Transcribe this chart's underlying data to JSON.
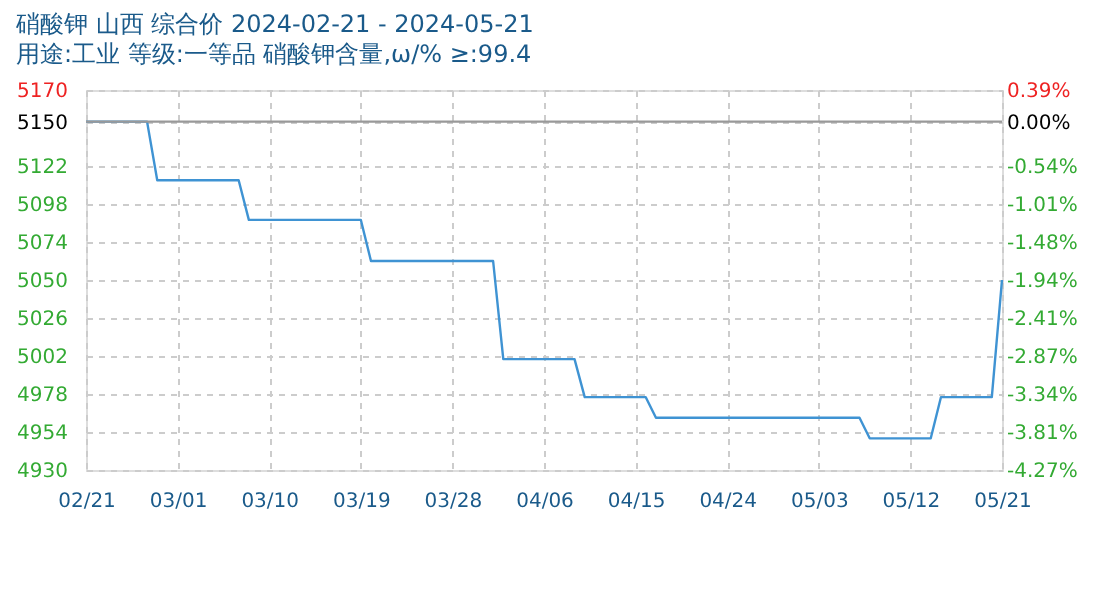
{
  "chart_data": {
    "type": "line",
    "title": "硝酸钾 山西 综合价 2024-02-21 - 2024-05-21",
    "subtitle": "用途:工业 等级:一等品 硝酸钾含量,ω/% ≥:99.4",
    "x": [
      "2024-02-21",
      "2024-02-27",
      "2024-02-28",
      "2024-03-07",
      "2024-03-08",
      "2024-03-19",
      "2024-03-20",
      "2024-04-01",
      "2024-04-02",
      "2024-04-09",
      "2024-04-10",
      "2024-04-16",
      "2024-04-17",
      "2024-05-07",
      "2024-05-08",
      "2024-05-14",
      "2024-05-15",
      "2024-05-20",
      "2024-05-21"
    ],
    "series": [
      {
        "color": "#3f93d3",
        "values": [
          5150,
          5150,
          5113,
          5113,
          5088,
          5088,
          5062,
          5062,
          5000,
          5000,
          4976,
          4976,
          4963,
          4963,
          4950,
          4950,
          4976,
          4976,
          5050
        ]
      }
    ],
    "xlim": [
      "2024-02-21",
      "2024-05-21"
    ],
    "xticks": [
      {
        "value": "2024-02-21",
        "label": "02/21"
      },
      {
        "value": "2024-03-01",
        "label": "03/01"
      },
      {
        "value": "2024-03-10",
        "label": "03/10"
      },
      {
        "value": "2024-03-19",
        "label": "03/19"
      },
      {
        "value": "2024-03-28",
        "label": "03/28"
      },
      {
        "value": "2024-04-06",
        "label": "04/06"
      },
      {
        "value": "2024-04-15",
        "label": "04/15"
      },
      {
        "value": "2024-04-24",
        "label": "04/24"
      },
      {
        "value": "2024-05-03",
        "label": "05/03"
      },
      {
        "value": "2024-05-12",
        "label": "05/12"
      },
      {
        "value": "2024-05-21",
        "label": "05/21"
      }
    ],
    "ylim": [
      4930,
      5170
    ],
    "yticks": [
      5170,
      5150,
      5122,
      5098,
      5074,
      5050,
      5026,
      5002,
      4978,
      4954,
      4930
    ],
    "y2lim": [
      -4.27,
      0.39
    ],
    "y2ticks": [
      {
        "value": 0.39,
        "label": "0.39%"
      },
      {
        "value": 0,
        "label": "0.00%"
      },
      {
        "value": -0.54,
        "label": "-0.54%"
      },
      {
        "value": -1.01,
        "label": "-1.01%"
      },
      {
        "value": -1.48,
        "label": "-1.48%"
      },
      {
        "value": -1.94,
        "label": "-1.94%"
      },
      {
        "value": -2.41,
        "label": "-2.41%"
      },
      {
        "value": -2.87,
        "label": "-2.87%"
      },
      {
        "value": -3.34,
        "label": "-3.34%"
      },
      {
        "value": -3.81,
        "label": "-3.81%"
      },
      {
        "value": -4.27,
        "label": "-4.27%"
      }
    ],
    "ref_lines": [
      {
        "axis": "y",
        "value": 5150,
        "color": "#999999"
      }
    ],
    "grid": true,
    "marker": "none",
    "line_style": "solid"
  }
}
